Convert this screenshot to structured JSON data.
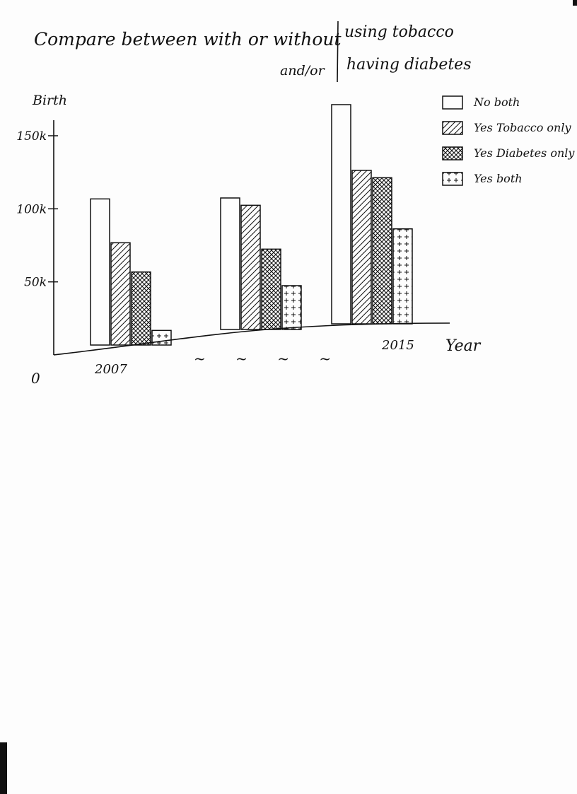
{
  "chart_data": {
    "type": "bar",
    "title_line1": "Compare between with or without",
    "title_right_line1": "using tobacco",
    "title_line2_left": "and/or",
    "title_right_line2": "having diabetes",
    "ylabel": "Birth",
    "xlabel": "Year",
    "origin_label": "0",
    "y_ticks": [
      {
        "value": 50000,
        "label": "50k"
      },
      {
        "value": 100000,
        "label": "100k"
      },
      {
        "value": 150000,
        "label": "150k"
      }
    ],
    "ylim": [
      0,
      160000
    ],
    "categories": [
      "2007",
      "",
      "2015"
    ],
    "series": [
      {
        "name": "No both",
        "values": [
          100000,
          90000,
          150000
        ]
      },
      {
        "name": "Yes Tobacco only",
        "values": [
          70000,
          85000,
          105000
        ]
      },
      {
        "name": "Yes Diabetes only",
        "values": [
          50000,
          55000,
          100000
        ]
      },
      {
        "name": "Yes both",
        "values": [
          10000,
          30000,
          65000
        ]
      }
    ],
    "legend_position": "top-right",
    "grid": false,
    "break_marks": "~ ~ ~ ~"
  },
  "colors": {
    "ink": "#111111",
    "paper": "#fdfdfd"
  },
  "patterns": [
    "none",
    "diagonal-hatch",
    "cross-hatch",
    "plus-dots"
  ]
}
